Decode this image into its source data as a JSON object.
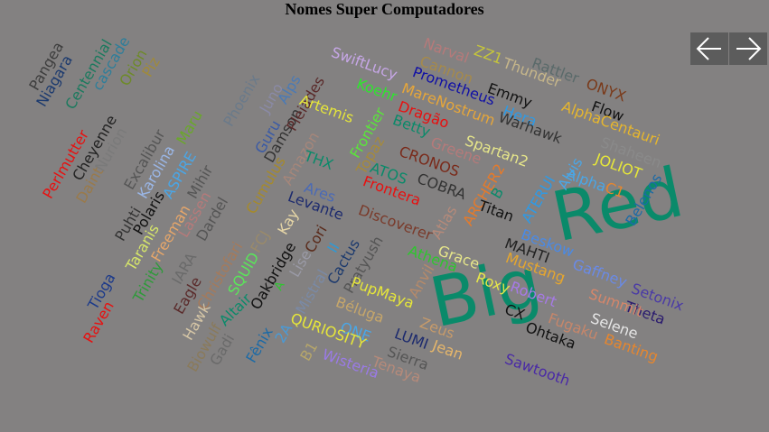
{
  "title": "Nomes Super Computadores",
  "nav": {
    "prev_icon": "arrow-left-icon",
    "next_icon": "arrow-right-icon",
    "icon_color": "#ffffff"
  },
  "words": [
    {
      "text": "Red",
      "color": "#0a8a6a"
    },
    {
      "text": "Big",
      "color": "#0a8a6a"
    },
    {
      "text": "Pangea",
      "color": "#3d3d3d"
    },
    {
      "text": "Niagara",
      "color": "#1c3a6e"
    },
    {
      "text": "Centennial",
      "color": "#1b7a5e"
    },
    {
      "text": "cascade",
      "color": "#2e7e9a"
    },
    {
      "text": "Orion",
      "color": "#6e8a2a"
    },
    {
      "text": "Piz",
      "color": "#a08a3a"
    },
    {
      "text": "Perlmutter",
      "color": "#e81010"
    },
    {
      "text": "Cheyenne",
      "color": "#222222"
    },
    {
      "text": "Daint",
      "color": "#9a7a4a"
    },
    {
      "text": "Nurion",
      "color": "#7a7a7a"
    },
    {
      "text": "Excalibur",
      "color": "#555555"
    },
    {
      "text": "Karolina",
      "color": "#9ab6e6"
    },
    {
      "text": "ASPIRE",
      "color": "#4aa6e6"
    },
    {
      "text": "Maru",
      "color": "#6aa82a"
    },
    {
      "text": "Mihir",
      "color": "#555555"
    },
    {
      "text": "Puhti",
      "color": "#333333"
    },
    {
      "text": "Polaris",
      "color": "#111111"
    },
    {
      "text": "Taranis",
      "color": "#d6e66a"
    },
    {
      "text": "Freeman",
      "color": "#e6a66a"
    },
    {
      "text": "Lassen",
      "color": "#b67a7a"
    },
    {
      "text": "Dardel",
      "color": "#555555"
    },
    {
      "text": "Trinity",
      "color": "#2e9a3a"
    },
    {
      "text": "IARA",
      "color": "#6a6a6a"
    },
    {
      "text": "Christofari",
      "color": "#a67a5a"
    },
    {
      "text": "Tioga",
      "color": "#1c3a8a"
    },
    {
      "text": "Raven",
      "color": "#e81010"
    },
    {
      "text": "Eagle",
      "color": "#5a2a2a"
    },
    {
      "text": "Hawk",
      "color": "#d6c6a6"
    },
    {
      "text": "Biowulf",
      "color": "#8a7a5a"
    },
    {
      "text": "Gadi",
      "color": "#6a6a6a"
    },
    {
      "text": "SQUID",
      "color": "#5ae65a"
    },
    {
      "text": "FCJ",
      "color": "#9a8a6a"
    },
    {
      "text": "Oakbridge",
      "color": "#111111"
    },
    {
      "text": "Kay",
      "color": "#e6d6a6"
    },
    {
      "text": "Altair",
      "color": "#0a8a6a"
    },
    {
      "text": "A",
      "color": "#2ec62e"
    },
    {
      "text": "Lise",
      "color": "#9a9aa6"
    },
    {
      "text": "Fênix",
      "color": "#1c6aa6"
    },
    {
      "text": "2A",
      "color": "#4a9ad6"
    },
    {
      "text": "Mistral",
      "color": "#7a8aa6"
    },
    {
      "text": "Cori",
      "color": "#5a2a1a"
    },
    {
      "text": "II",
      "color": "#2e9ad6"
    },
    {
      "text": "Cactus",
      "color": "#1c3a6e"
    },
    {
      "text": "Pratyush",
      "color": "#555555"
    },
    {
      "text": "Phoenix",
      "color": "#6a7a8a"
    },
    {
      "text": "Juno",
      "color": "#8a8aa6"
    },
    {
      "text": "Alps",
      "color": "#4a7ab6"
    },
    {
      "text": "Guru",
      "color": "#3a5aa6"
    },
    {
      "text": "Damson",
      "color": "#333333"
    },
    {
      "text": "Pleiades",
      "color": "#5a2a2a"
    },
    {
      "text": "Cumulus",
      "color": "#a68a2a"
    },
    {
      "text": "Amazon",
      "color": "#a6867a"
    },
    {
      "text": "SwiftLucy",
      "color": "#c6a6e6"
    },
    {
      "text": "Narval",
      "color": "#b67a7a"
    },
    {
      "text": "ZZ1",
      "color": "#c6c63a"
    },
    {
      "text": "Thunder",
      "color": "#c6b68a"
    },
    {
      "text": "Rattler",
      "color": "#5a6a6a"
    },
    {
      "text": "ONYX",
      "color": "#7a3a1a"
    },
    {
      "text": "Cannon",
      "color": "#a68a4a"
    },
    {
      "text": "Flow",
      "color": "#111111"
    },
    {
      "text": "Koehr",
      "color": "#2ee62e"
    },
    {
      "text": "Prometheus",
      "color": "#1010a6"
    },
    {
      "text": "Emmy",
      "color": "#111111"
    },
    {
      "text": "MareNostrum",
      "color": "#e6a63a"
    },
    {
      "text": "Hera",
      "color": "#2e9ae6"
    },
    {
      "text": "AlphaCentauri",
      "color": "#e6b62e"
    },
    {
      "text": "Artemis",
      "color": "#e6e63a"
    },
    {
      "text": "Dragão",
      "color": "#e81010"
    },
    {
      "text": "Betty",
      "color": "#0a8a6a"
    },
    {
      "text": "Warhawk",
      "color": "#333333"
    },
    {
      "text": "Frontier",
      "color": "#5ae63a"
    },
    {
      "text": "Topaz",
      "color": "#a68a3a"
    },
    {
      "text": "CRONOS",
      "color": "#7a2a1a"
    },
    {
      "text": "Greene",
      "color": "#b67a7a"
    },
    {
      "text": "Spartan2",
      "color": "#e6e68a"
    },
    {
      "text": "Shaheen",
      "color": "#8a8a8a"
    },
    {
      "text": "JOLIOT",
      "color": "#e6e63a"
    },
    {
      "text": "THX",
      "color": "#0a8a6a"
    },
    {
      "text": "ATOS",
      "color": "#0a8a6a"
    },
    {
      "text": "COBRA",
      "color": "#333333"
    },
    {
      "text": "ARCHER2",
      "color": "#e67a2a"
    },
    {
      "text": "B",
      "color": "#0a8a6a"
    },
    {
      "text": "Alvis",
      "color": "#4aa6e6"
    },
    {
      "text": "Alpha",
      "color": "#4aa6e6"
    },
    {
      "text": "C1",
      "color": "#e6862e"
    },
    {
      "text": "Belenos",
      "color": "#1c6aa6"
    },
    {
      "text": "Ares",
      "color": "#4a6ab6"
    },
    {
      "text": "Levante",
      "color": "#1c2a6e"
    },
    {
      "text": "Frontera",
      "color": "#e81010"
    },
    {
      "text": "Titan",
      "color": "#111111"
    },
    {
      "text": "ATERUI",
      "color": "#2e9ae6"
    },
    {
      "text": "Discoverer",
      "color": "#7a3a2a"
    },
    {
      "text": "Atlas",
      "color": "#b68a7a"
    },
    {
      "text": "Beskow",
      "color": "#4a8ae6"
    },
    {
      "text": "Gaffney",
      "color": "#6a8ae6"
    },
    {
      "text": "MAHTI",
      "color": "#222222"
    },
    {
      "text": "Grace",
      "color": "#e6e68a"
    },
    {
      "text": "Athena",
      "color": "#2ec62e"
    },
    {
      "text": "Mustang",
      "color": "#e6a62e"
    },
    {
      "text": "Setonix",
      "color": "#4a3aa6"
    },
    {
      "text": "Theta",
      "color": "#2a1a6e"
    },
    {
      "text": "Anvil",
      "color": "#b68a6a"
    },
    {
      "text": "Roxy",
      "color": "#e6e64a"
    },
    {
      "text": "Robert",
      "color": "#a67ae6"
    },
    {
      "text": "Summit",
      "color": "#d6866a"
    },
    {
      "text": "PupMaya",
      "color": "#e6e63a"
    },
    {
      "text": "Selene",
      "color": "#e6e6e6"
    },
    {
      "text": "CX",
      "color": "#111111"
    },
    {
      "text": "Béluga",
      "color": "#c6a66a"
    },
    {
      "text": "Ohtaka",
      "color": "#111111"
    },
    {
      "text": "Fugaku",
      "color": "#c6866a"
    },
    {
      "text": "ONE",
      "color": "#4aa6e6"
    },
    {
      "text": "QURIOSITY",
      "color": "#e6e63a"
    },
    {
      "text": "LUMI",
      "color": "#1c2a6e"
    },
    {
      "text": "Jean",
      "color": "#e6b66a"
    },
    {
      "text": "Zeus",
      "color": "#c69a6a"
    },
    {
      "text": "Banting",
      "color": "#e6862e"
    },
    {
      "text": "Sierra",
      "color": "#555555"
    },
    {
      "text": "Tenaya",
      "color": "#b68a7a"
    },
    {
      "text": "B1",
      "color": "#b6a66a"
    },
    {
      "text": "Wisteria",
      "color": "#9a7ae6"
    },
    {
      "text": "Sawtooth",
      "color": "#4a2aa6"
    }
  ]
}
